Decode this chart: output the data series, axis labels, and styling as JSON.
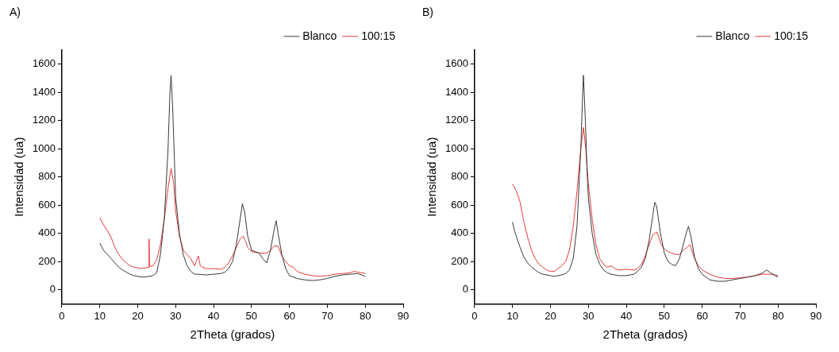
{
  "chart_data": [
    {
      "type": "line",
      "title": "A)",
      "xlabel": "2Theta (grados)",
      "ylabel": "Intensidad (ua)",
      "xlim": [
        0,
        90
      ],
      "xticks": [
        0,
        10,
        20,
        30,
        40,
        50,
        60,
        70,
        80,
        90
      ],
      "ylim": [
        -100,
        1700
      ],
      "yticks": [
        0,
        200,
        400,
        600,
        800,
        1000,
        1200,
        1400,
        1600
      ],
      "grid": false,
      "legend": "top right",
      "marker": "none",
      "line_style": "solid",
      "series": [
        {
          "name": "Blanco",
          "color": "#3a3a3a",
          "x": [
            10,
            11,
            12,
            13,
            14,
            15,
            16,
            17,
            18,
            19,
            20,
            21,
            22,
            23,
            24,
            25,
            26,
            27,
            28,
            28.5,
            28.8,
            29.2,
            29.7,
            30,
            31,
            32,
            33,
            34,
            35,
            36,
            38,
            40,
            42,
            43,
            44,
            45,
            46,
            47,
            47.6,
            48.2,
            49,
            50,
            51,
            52,
            53,
            54,
            55,
            56,
            56.5,
            57,
            58,
            59,
            60,
            62,
            64,
            66,
            68,
            70,
            72,
            74,
            76,
            78,
            80
          ],
          "values": [
            330,
            280,
            250,
            220,
            190,
            160,
            140,
            125,
            110,
            100,
            95,
            90,
            90,
            95,
            100,
            120,
            250,
            500,
            1000,
            1400,
            1520,
            1300,
            900,
            650,
            400,
            250,
            170,
            130,
            110,
            110,
            105,
            110,
            115,
            125,
            150,
            200,
            320,
            500,
            610,
            550,
            380,
            280,
            270,
            260,
            220,
            190,
            280,
            430,
            490,
            400,
            250,
            150,
            100,
            80,
            70,
            65,
            70,
            80,
            95,
            105,
            110,
            115,
            95
          ]
        },
        {
          "name": "100:15",
          "color": "#e8393a",
          "x": [
            10,
            11,
            12,
            13,
            14,
            15,
            16,
            17,
            18,
            19,
            20,
            21,
            22,
            22.9,
            23,
            23.1,
            24,
            25,
            26,
            27,
            28,
            28.8,
            29.5,
            30,
            31,
            32,
            33,
            34,
            35,
            36,
            36.5,
            37,
            38,
            40,
            42,
            43,
            44,
            45,
            46,
            47,
            47.8,
            48.5,
            49,
            50,
            52,
            54,
            55,
            56,
            57,
            58,
            59,
            60,
            61,
            62,
            64,
            66,
            68,
            70,
            72,
            74,
            76,
            77,
            78,
            80
          ],
          "values": [
            510,
            460,
            420,
            370,
            300,
            250,
            215,
            190,
            170,
            160,
            155,
            150,
            155,
            160,
            360,
            165,
            170,
            210,
            320,
            500,
            720,
            860,
            750,
            560,
            380,
            280,
            250,
            220,
            170,
            240,
            170,
            160,
            150,
            150,
            145,
            160,
            190,
            240,
            300,
            360,
            380,
            340,
            300,
            270,
            260,
            260,
            280,
            310,
            310,
            240,
            200,
            170,
            160,
            130,
            110,
            100,
            95,
            100,
            110,
            115,
            120,
            130,
            125,
            115
          ]
        }
      ]
    },
    {
      "type": "line",
      "title": "B)",
      "xlabel": "2Theta (grados)",
      "ylabel": "Intensidad (ua)",
      "xlim": [
        0,
        90
      ],
      "xticks": [
        0,
        10,
        20,
        30,
        40,
        50,
        60,
        70,
        80,
        90
      ],
      "ylim": [
        -100,
        1700
      ],
      "yticks": [
        0,
        200,
        400,
        600,
        800,
        1000,
        1200,
        1400,
        1600
      ],
      "grid": false,
      "legend": "top right",
      "marker": "none",
      "line_style": "solid",
      "series": [
        {
          "name": "Blanco",
          "color": "#3a3a3a",
          "x": [
            10,
            10.5,
            11,
            12,
            13,
            14,
            15,
            16,
            17,
            18,
            19,
            20,
            21,
            22,
            23,
            24,
            25,
            26,
            27,
            28,
            28.5,
            28.7,
            29.2,
            29.7,
            30,
            31,
            32,
            33,
            34,
            35,
            36,
            38,
            40,
            42,
            43,
            44,
            45,
            46,
            47,
            47.5,
            48,
            49,
            50,
            51,
            52,
            53,
            54,
            55,
            56,
            56.4,
            57,
            58,
            59,
            60,
            62,
            64,
            66,
            68,
            70,
            72,
            74,
            76,
            77,
            78,
            80
          ],
          "values": [
            480,
            420,
            380,
            300,
            230,
            190,
            160,
            140,
            120,
            110,
            105,
            100,
            95,
            100,
            105,
            115,
            140,
            220,
            450,
            1000,
            1400,
            1520,
            1200,
            800,
            650,
            400,
            250,
            180,
            140,
            120,
            110,
            100,
            100,
            110,
            130,
            160,
            220,
            350,
            530,
            620,
            590,
            400,
            260,
            200,
            180,
            170,
            220,
            320,
            420,
            450,
            380,
            230,
            150,
            110,
            70,
            60,
            60,
            70,
            80,
            90,
            100,
            120,
            140,
            120,
            90
          ]
        },
        {
          "name": "100:15",
          "color": "#e8393a",
          "x": [
            10,
            11,
            12,
            13,
            14,
            15,
            16,
            17,
            18,
            19,
            20,
            21,
            22,
            23,
            24,
            25,
            26,
            27,
            28,
            28.7,
            29.3,
            30,
            31,
            32,
            33,
            34,
            35,
            36,
            37,
            38,
            40,
            42,
            43,
            44,
            45,
            46,
            47,
            48,
            48.5,
            49,
            50,
            51,
            52,
            53,
            54,
            55,
            56,
            56.7,
            57,
            58,
            59,
            60,
            62,
            64,
            66,
            68,
            70,
            72,
            74,
            76,
            78,
            80
          ],
          "values": [
            750,
            700,
            620,
            480,
            370,
            280,
            220,
            180,
            160,
            140,
            130,
            130,
            150,
            170,
            200,
            280,
            450,
            700,
            1000,
            1150,
            1000,
            750,
            500,
            320,
            220,
            180,
            160,
            170,
            150,
            140,
            145,
            140,
            150,
            180,
            240,
            320,
            390,
            410,
            380,
            330,
            290,
            270,
            260,
            250,
            250,
            280,
            300,
            320,
            300,
            220,
            170,
            140,
            110,
            90,
            80,
            80,
            85,
            90,
            100,
            110,
            110,
            100
          ]
        }
      ]
    }
  ]
}
